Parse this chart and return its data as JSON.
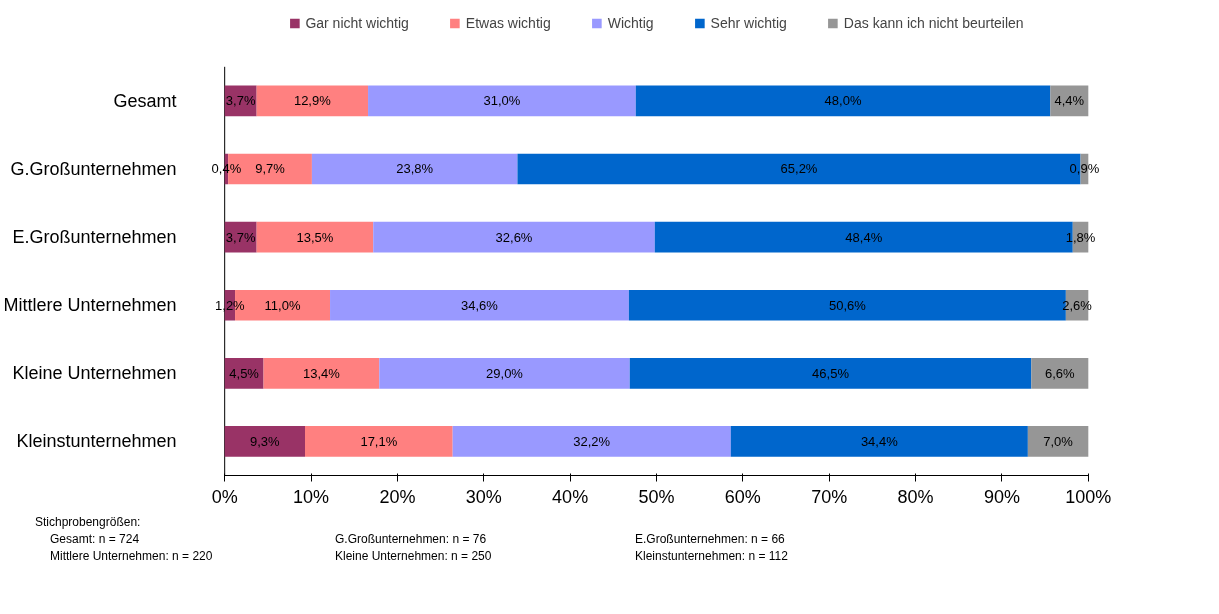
{
  "chart_data": {
    "type": "bar",
    "orientation": "horizontal",
    "stacked": true,
    "categories": [
      "Gesamt",
      "G.Großunternehmen",
      "E.Großunternehmen",
      "Mittlere Unternehmen",
      "Kleine Unternehmen",
      "Kleinstunternehmen"
    ],
    "series": [
      {
        "name": "Gar nicht wichtig",
        "color": "#993366",
        "values": [
          3.7,
          0.4,
          3.7,
          1.2,
          4.5,
          9.3
        ],
        "value_labels": [
          "3,7%",
          "0,4%",
          "3,7%",
          "1,2%",
          "4,5%",
          "9,3%"
        ]
      },
      {
        "name": "Etwas wichtig",
        "color": "#ff8080",
        "values": [
          12.9,
          9.7,
          13.5,
          11.0,
          13.4,
          17.1
        ],
        "value_labels": [
          "12,9%",
          "9,7%",
          "13,5%",
          "11,0%",
          "13,4%",
          "17,1%"
        ]
      },
      {
        "name": "Wichtig",
        "color": "#9999ff",
        "values": [
          31.0,
          23.8,
          32.6,
          34.6,
          29.0,
          32.2
        ],
        "value_labels": [
          "31,0%",
          "23,8%",
          "32,6%",
          "34,6%",
          "29,0%",
          "32,2%"
        ]
      },
      {
        "name": "Sehr wichtig",
        "color": "#0066cc",
        "values": [
          48.0,
          65.2,
          48.4,
          50.6,
          46.5,
          34.4
        ],
        "value_labels": [
          "48,0%",
          "65,2%",
          "48,4%",
          "50,6%",
          "46,5%",
          "34,4%"
        ]
      },
      {
        "name": "Das kann ich nicht beurteilen",
        "color": "#969696",
        "values": [
          4.4,
          0.9,
          1.8,
          2.6,
          6.6,
          7.0
        ],
        "value_labels": [
          "4,4%",
          "0,9%",
          "1,8%",
          "2,6%",
          "6,6%",
          "7,0%"
        ]
      }
    ],
    "xlim": [
      0,
      100
    ],
    "xticks": [
      {
        "value": 0,
        "label": "0%"
      },
      {
        "value": 10,
        "label": "10%"
      },
      {
        "value": 20,
        "label": "20%"
      },
      {
        "value": 30,
        "label": "30%"
      },
      {
        "value": 40,
        "label": "40%"
      },
      {
        "value": 50,
        "label": "50%"
      },
      {
        "value": 60,
        "label": "60%"
      },
      {
        "value": 70,
        "label": "70%"
      },
      {
        "value": 80,
        "label": "80%"
      },
      {
        "value": 90,
        "label": "90%"
      },
      {
        "value": 100,
        "label": "100%"
      }
    ],
    "grid": false,
    "legend": "top",
    "annotations": [
      "Stichprobengrößen:",
      "Gesamt: n = 724",
      "G.Großunternehmen: n = 76",
      "E.Großunternehmen: n = 66",
      "Mittlere Unternehmen: n = 220",
      "Kleine Unternehmen: n = 250",
      "Kleinstunternehmen: n = 112"
    ]
  }
}
